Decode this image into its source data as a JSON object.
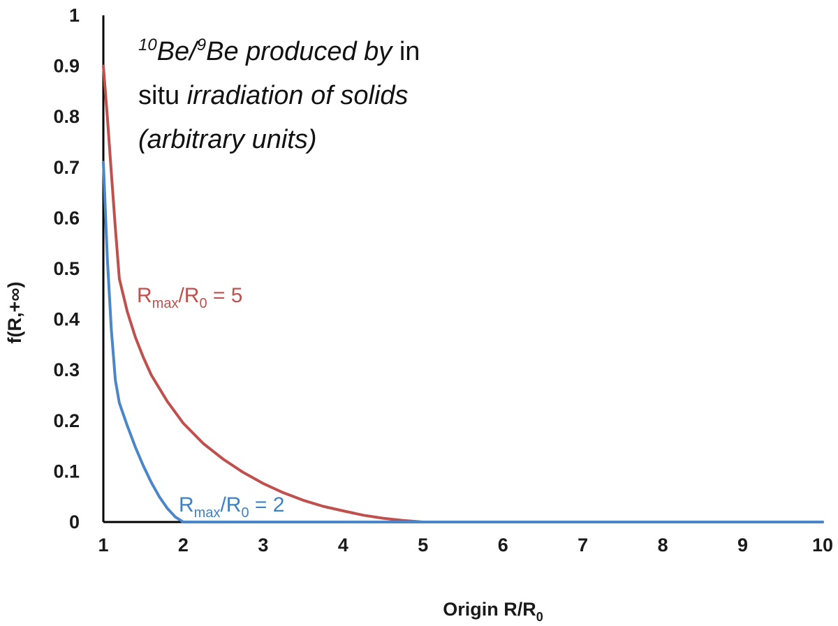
{
  "chart_data": {
    "type": "line",
    "xlabel": {
      "main": "Origin R/R",
      "sub": "0"
    },
    "ylabel": "f(R,+∞)",
    "xlim": [
      1,
      10
    ],
    "ylim": [
      0,
      1
    ],
    "x_ticks": [
      1,
      2,
      3,
      4,
      5,
      6,
      7,
      8,
      9,
      10
    ],
    "y_ticks": [
      0,
      0.1,
      0.2,
      0.3,
      0.4,
      0.5,
      0.6,
      0.7,
      0.8,
      0.9,
      1
    ],
    "x_tick_labels": [
      "1",
      "2",
      "3",
      "4",
      "5",
      "6",
      "7",
      "8",
      "9",
      "10"
    ],
    "y_tick_labels": [
      "0",
      "0.1",
      "0.2",
      "0.3",
      "0.4",
      "0.5",
      "0.6",
      "0.7",
      "0.8",
      "0.9",
      "1"
    ],
    "grid": false,
    "annotation": {
      "line1": {
        "sup1": "10",
        "be1": "Be/",
        "sup2": "9",
        "be2": "Be produced by",
        "roman": " in"
      },
      "line2": {
        "roman": "situ ",
        "italic": "irradiation of solids"
      },
      "line3": {
        "italic": "(arbitrary units)"
      }
    },
    "series": [
      {
        "label": {
          "main": "R",
          "sub1": "max",
          "mid": "/R",
          "sub2": "0",
          "tail": " = 5"
        },
        "color": "#c0504d",
        "x": [
          1.0,
          1.05,
          1.1,
          1.15,
          1.2,
          1.3,
          1.4,
          1.5,
          1.6,
          1.8,
          2.0,
          2.25,
          2.5,
          2.75,
          3.0,
          3.25,
          3.5,
          3.75,
          4.0,
          4.25,
          4.5,
          4.75,
          5.0,
          5.5,
          6,
          7,
          8,
          9,
          10
        ],
        "y": [
          0.9,
          0.8,
          0.69,
          0.58,
          0.48,
          0.415,
          0.365,
          0.325,
          0.29,
          0.238,
          0.195,
          0.155,
          0.124,
          0.098,
          0.076,
          0.058,
          0.043,
          0.031,
          0.022,
          0.0135,
          0.0075,
          0.003,
          0.0,
          0.0,
          0.0,
          0.0,
          0.0,
          0.0,
          0.0
        ]
      },
      {
        "label": {
          "main": "R",
          "sub1": "max",
          "mid": "/R",
          "sub2": "0",
          "tail": " = 2"
        },
        "color": "#4a86c8",
        "x": [
          1.0,
          1.05,
          1.1,
          1.15,
          1.2,
          1.3,
          1.4,
          1.5,
          1.6,
          1.7,
          1.8,
          1.9,
          2.0,
          3,
          4,
          5,
          6,
          7,
          8,
          9,
          10
        ],
        "y": [
          0.71,
          0.52,
          0.38,
          0.28,
          0.235,
          0.19,
          0.148,
          0.111,
          0.078,
          0.05,
          0.027,
          0.01,
          0.0,
          0.0,
          0.0,
          0.0,
          0.0,
          0.0,
          0.0,
          0.0,
          0.0
        ]
      }
    ]
  }
}
